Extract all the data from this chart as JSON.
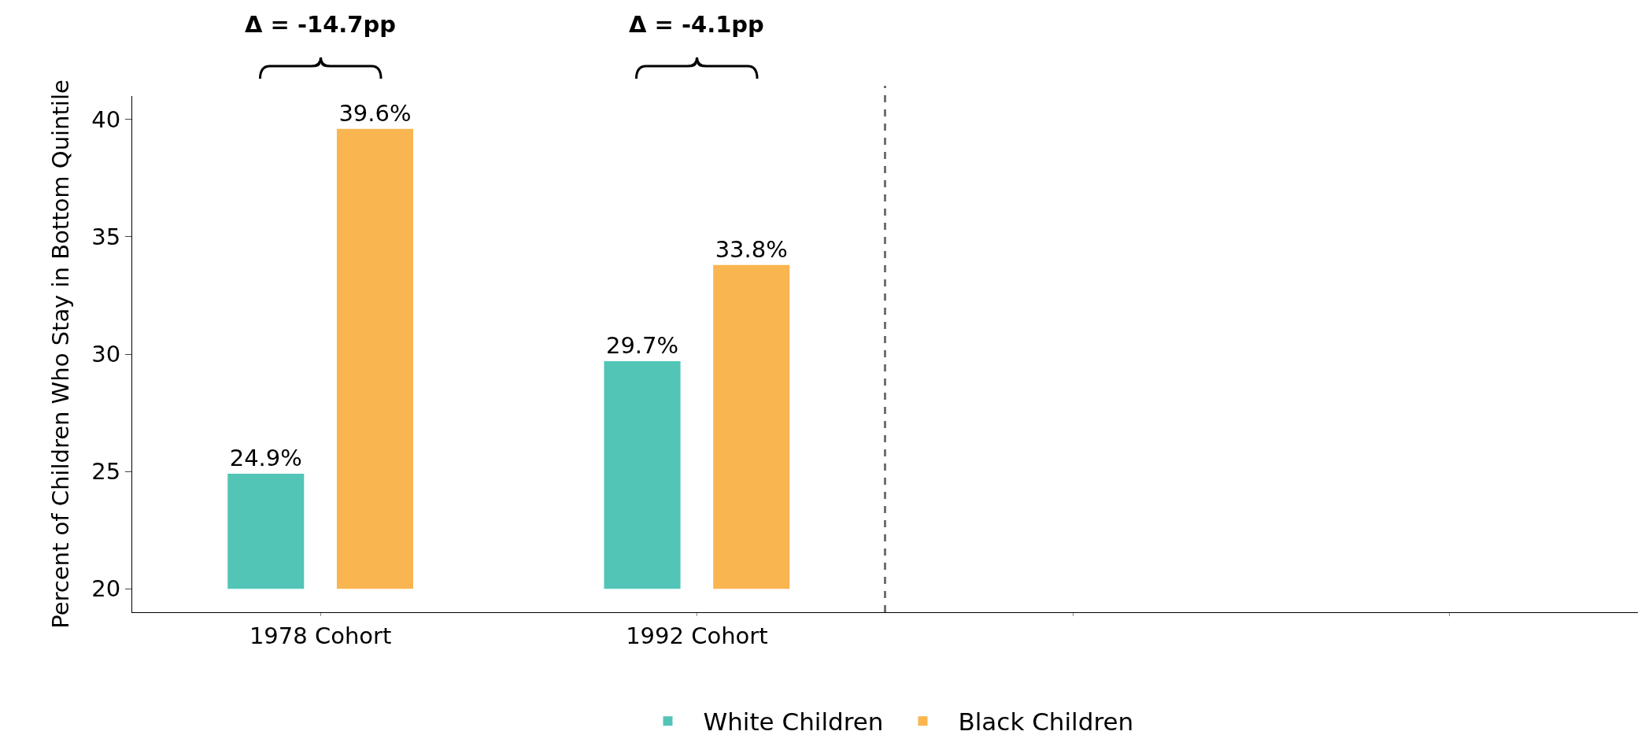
{
  "chart_data": {
    "type": "bar",
    "ylabel": "Percent of Children Who Stay in Bottom Quintile",
    "categories": [
      "1978 Cohort",
      "1992 Cohort",
      null,
      null
    ],
    "series": [
      {
        "name": "White Children",
        "color": "#52c5b7",
        "base": [
          20,
          20,
          null,
          null
        ],
        "values": [
          4.9,
          9.7,
          null,
          null
        ],
        "value_labels": [
          "24.9%",
          "29.7%",
          null,
          null
        ]
      },
      {
        "name": "Black Children",
        "color": "#f9b54f",
        "base": [
          20,
          20,
          null,
          null
        ],
        "values": [
          19.6,
          13.8,
          null,
          null
        ],
        "value_labels": [
          "39.6%",
          "33.8%",
          null,
          null
        ]
      }
    ],
    "ylim": [
      19,
      41
    ],
    "yticks": [
      20,
      25,
      30,
      35,
      40
    ],
    "annotations": [
      "Δ = -14.7pp",
      "Δ = -4.1pp"
    ],
    "grid": false,
    "legend": "bottom"
  }
}
